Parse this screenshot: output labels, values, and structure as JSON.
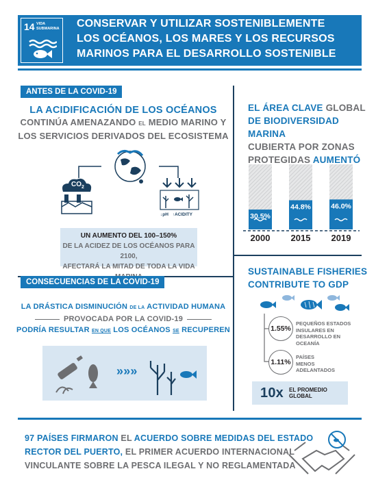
{
  "header": {
    "badge_number": "14",
    "badge_text": "VIDA SUBMARINA",
    "title_line1": "CONSERVAR Y UTILIZAR SOSTENIBLEMENTE",
    "title_line2": "LOS OCÉANOS, LOS MARES Y LOS RECURSOS",
    "title_line3": "MARINOS PARA EL DESARROLLO SOSTENIBLE",
    "brand_color": "#1878b9"
  },
  "before": {
    "tag": "ANTES DE LA COVID-19",
    "head_line1": "LA ACIDIFICACIÓN DE LOS OCÉANOS",
    "head_line2_a": "CONTINÚA AMENAZANDO",
    "head_line2_b": "EL",
    "head_line2_c": "MEDIO MARINO Y",
    "head_line3": "LOS SERVICIOS DERIVADOS DEL ECOSISTEMA",
    "co2_label": "CO",
    "co2_sub": "2",
    "ph_label": "pH",
    "acidity_label": "ACIDITY",
    "stat_line1": "UN AUMENTO DEL 100–150%",
    "stat_line2": "DE LA ACIDEZ DE LOS OCÉANOS PARA 2100,",
    "stat_line3": "AFECTARÁ LA MITAD DE TODA LA VIDA MARINA"
  },
  "protected": {
    "head_line1_a": "EL ÁREA CLAVE",
    "head_line1_b": "GLOBAL",
    "head_line2": "DE BIODIVERSIDAD MARINA",
    "head_line3": "CUBIERTA POR ZONAS",
    "head_line4_a": "PROTEGIDAS",
    "head_line4_b": "AUMENTÓ"
  },
  "chart_data": {
    "type": "bar",
    "categories": [
      "2000",
      "2015",
      "2019"
    ],
    "values": [
      30.5,
      44.8,
      46.0
    ],
    "value_labels": [
      "30.5%",
      "44.8%",
      "46.0%"
    ],
    "ylim": [
      0,
      100
    ]
  },
  "fisheries": {
    "head_line1": "SUSTAINABLE FISHERIES",
    "head_line2": "CONTRIBUTE TO GDP",
    "stat1_value": "1.55%",
    "stat1_line1": "PEQUEÑOS ESTADOS",
    "stat1_line2": "INSULARES EN",
    "stat1_line3": "DESARROLLO EN",
    "stat1_line4": "OCEANÍA",
    "stat2_value": "1.11%",
    "stat2_line1": "PAÍSES",
    "stat2_line2": "MENOS",
    "stat2_line3": "ADELANTADOS",
    "multiplier": "10x",
    "multiplier_label": "EL PROMEDIO GLOBAL"
  },
  "consequences": {
    "tag": "CONSECUENCIAS DE LA COVID-19",
    "line1_a": "LA DRÁSTICA DISMINUCIÓN",
    "line1_b": "DE LA",
    "line1_c": "ACTIVIDAD HUMANA",
    "line2": "PROVOCADA POR LA COVID-19",
    "line3_a": "PODRÍA RESULTAR",
    "line3_b": "EN QUE",
    "line3_c": "LOS OCÉANOS",
    "line3_d": "SE",
    "line3_e": "RECUPEREN"
  },
  "footer": {
    "line1_a": "97 PAÍSES FIRMARON",
    "line1_b": "EL",
    "line1_c": "ACUERDO SOBRE MEDIDAS DEL ESTADO",
    "line2_a": "RECTOR DEL PUERTO,",
    "line2_b": "EL PRIMER ACUERDO INTERNACIONAL",
    "line3": "VINCULANTE SOBRE LA PESCA ILEGAL Y NO REGLAMENTADA"
  }
}
